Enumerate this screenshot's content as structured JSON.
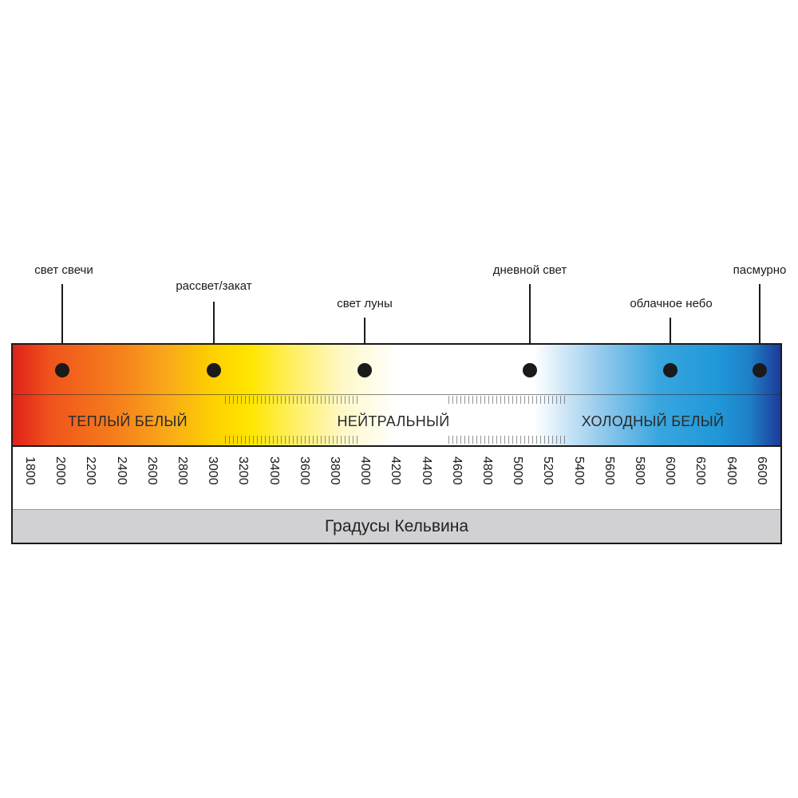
{
  "sources": [
    {
      "label": "свет свечи",
      "kelvin": 1900
    },
    {
      "label": "рассвет/закат",
      "kelvin": 3000
    },
    {
      "label": "свет луны",
      "kelvin": 4000
    },
    {
      "label": "дневной свет",
      "kelvin": 5100
    },
    {
      "label": "облачное небо",
      "kelvin": 6000
    },
    {
      "label": "пасмурно",
      "kelvin": 6600
    }
  ],
  "zones": {
    "warm": "ТЕПЛЫЙ БЕЛЫЙ",
    "neutral": "НЕЙТРАЛЬНЫЙ",
    "cool": "ХОЛОДНЫЙ БЕЛЫЙ"
  },
  "scale": {
    "ticks": [
      "1800",
      "2000",
      "2200",
      "2400",
      "2600",
      "2800",
      "3000",
      "3200",
      "3400",
      "3600",
      "3800",
      "4000",
      "4200",
      "4400",
      "4600",
      "4800",
      "5000",
      "5200",
      "5400",
      "5600",
      "5800",
      "6000",
      "6200",
      "6400",
      "6600"
    ],
    "unit_label": "Градусы Кельвина"
  },
  "colors": {
    "warm_end": "#e0221a",
    "yellow": "#ffe600",
    "neutral": "#ffffff",
    "cool": "#1f97d8",
    "cool_end": "#1c3b9a",
    "unit_bar": "#d1d1d3"
  }
}
